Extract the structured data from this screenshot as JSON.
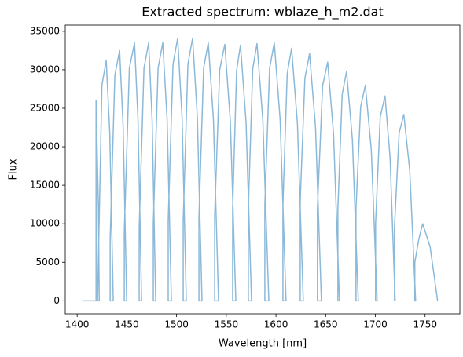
{
  "chart_data": {
    "type": "line",
    "title": "Extracted spectrum: wblaze_h_m2.dat",
    "xlabel": "Wavelength [nm]",
    "ylabel": "Flux",
    "xlim": [
      1388,
      1785
    ],
    "ylim": [
      -1700,
      35800
    ],
    "xticks": [
      1400,
      1450,
      1500,
      1550,
      1600,
      1650,
      1700,
      1750
    ],
    "yticks": [
      0,
      5000,
      10000,
      15000,
      20000,
      25000,
      30000,
      35000
    ],
    "x": [
      1405.5,
      1418.2,
      1419.0,
      1419.0,
      1421.4,
      1422.2,
      1420.5,
      1424.9,
      1429.2,
      1432.8,
      1436.3,
      1433.2,
      1433.2,
      1437.9,
      1442.7,
      1446.2,
      1449.8,
      1447.4,
      1447.4,
      1452.5,
      1457.7,
      1461.2,
      1464.8,
      1462.4,
      1462.4,
      1467.2,
      1471.9,
      1475.4,
      1479.0,
      1476.6,
      1476.6,
      1481.4,
      1486.1,
      1490.5,
      1494.8,
      1491.6,
      1491.6,
      1496.4,
      1501.1,
      1505.5,
      1509.8,
      1506.7,
      1506.7,
      1511.4,
      1516.1,
      1520.9,
      1525.6,
      1522.5,
      1522.5,
      1527.2,
      1531.9,
      1537.1,
      1542.2,
      1538.3,
      1538.3,
      1543.4,
      1548.5,
      1554.1,
      1559.6,
      1556.4,
      1556.4,
      1560.4,
      1564.3,
      1569.9,
      1575.4,
      1572.2,
      1572.2,
      1576.6,
      1580.9,
      1586.8,
      1592.8,
      1588.8,
      1588.8,
      1593.6,
      1598.3,
      1604.2,
      1610.1,
      1607.0,
      1607.0,
      1611.3,
      1615.7,
      1621.6,
      1627.5,
      1624.4,
      1624.4,
      1629.1,
      1633.8,
      1639.8,
      1645.7,
      1641.7,
      1641.7,
      1646.9,
      1652.0,
      1657.9,
      1663.9,
      1662.3,
      1662.3,
      1666.6,
      1671.0,
      1676.9,
      1682.8,
      1680.5,
      1680.5,
      1685.2,
      1689.9,
      1695.9,
      1701.8,
      1700.2,
      1700.2,
      1704.9,
      1709.7,
      1714.8,
      1719.9,
      1719.2,
      1719.2,
      1723.9,
      1728.6,
      1734.6,
      1740.5,
      1739.7,
      1739.7,
      1743.7,
      1747.6,
      1755.1,
      1762.6
    ],
    "series": [
      {
        "color": "#8bb9d9",
        "values": [
          0,
          0,
          0,
          26000,
          12000,
          0,
          0,
          28000,
          31200,
          21800,
          0,
          0,
          8000,
          29300,
          32500,
          22800,
          0,
          0,
          9000,
          30200,
          33500,
          23500,
          0,
          0,
          9500,
          30200,
          33500,
          23500,
          0,
          0,
          10000,
          30200,
          33500,
          23500,
          0,
          0,
          10500,
          30700,
          34100,
          23900,
          0,
          0,
          10500,
          30700,
          34100,
          23900,
          0,
          0,
          10800,
          30200,
          33500,
          23500,
          0,
          0,
          11000,
          30000,
          33300,
          23300,
          0,
          0,
          12000,
          29900,
          33200,
          23200,
          0,
          0,
          12000,
          30100,
          33400,
          23400,
          0,
          0,
          12500,
          30200,
          33500,
          23500,
          0,
          0,
          12500,
          29500,
          32800,
          23000,
          0,
          0,
          13000,
          28900,
          32100,
          22500,
          0,
          0,
          12000,
          27900,
          31000,
          21700,
          0,
          0,
          12000,
          26800,
          29800,
          20900,
          0,
          0,
          12000,
          25200,
          28000,
          19600,
          0,
          0,
          10000,
          23900,
          26600,
          18600,
          0,
          0,
          9500,
          21800,
          24200,
          16900,
          0,
          0,
          5000,
          8000,
          10000,
          7000,
          0
        ]
      }
    ]
  }
}
